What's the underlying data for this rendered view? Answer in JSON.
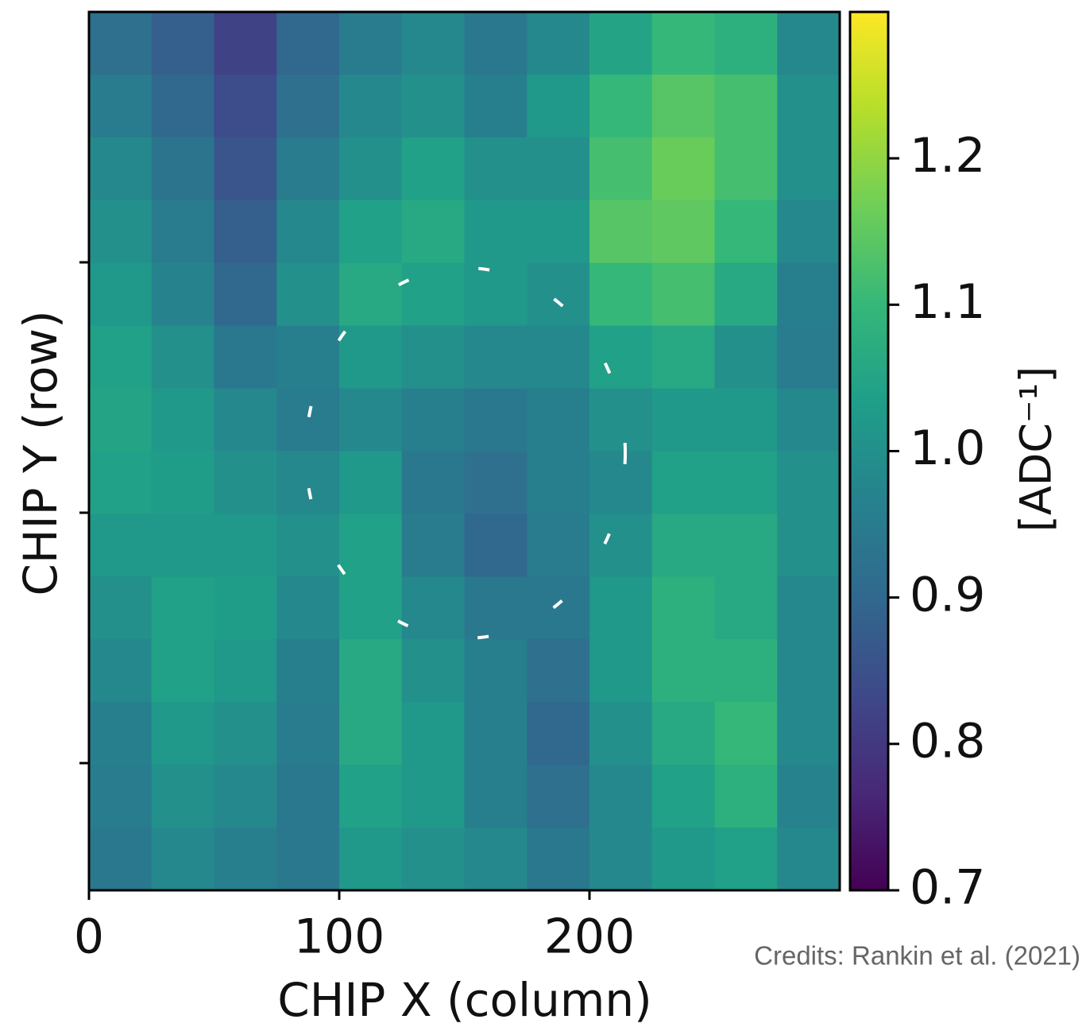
{
  "chart_data": {
    "type": "heatmap",
    "x_label": "CHIP X (column)",
    "y_label": "CHIP Y (row)",
    "colorbar_label": "[ADC⁻¹]",
    "colormap": "viridis",
    "xlim": [
      0,
      300
    ],
    "xticks": [
      0,
      100,
      200
    ],
    "clim": [
      0.7,
      1.3
    ],
    "cticks": [
      0.7,
      0.8,
      0.9,
      {
        "value": 1,
        "label": "1.0"
      },
      1.1,
      1.2
    ],
    "credits": "Credits: Rankin et al. (2021)",
    "z": [
      [
        0.92,
        0.88,
        0.82,
        0.9,
        0.95,
        0.98,
        0.94,
        0.98,
        1.05,
        1.1,
        1.08,
        0.98
      ],
      [
        0.95,
        0.9,
        0.84,
        0.92,
        0.98,
        1.0,
        0.96,
        1.02,
        1.1,
        1.14,
        1.12,
        1.0
      ],
      [
        0.98,
        0.93,
        0.86,
        0.95,
        1.0,
        1.04,
        1.0,
        1.0,
        1.12,
        1.16,
        1.12,
        1.0
      ],
      [
        1.0,
        0.95,
        0.88,
        0.98,
        1.04,
        1.06,
        1.02,
        1.02,
        1.14,
        1.15,
        1.1,
        0.98
      ],
      [
        1.02,
        0.97,
        0.9,
        1.0,
        1.06,
        1.04,
        1.02,
        1.0,
        1.1,
        1.12,
        1.06,
        0.96
      ],
      [
        1.04,
        1.0,
        0.94,
        0.96,
        1.02,
        1.0,
        0.98,
        0.98,
        1.04,
        1.06,
        1.0,
        0.95
      ],
      [
        1.05,
        1.02,
        0.98,
        0.95,
        0.98,
        0.96,
        0.94,
        0.96,
        1.0,
        1.02,
        1.02,
        0.98
      ],
      [
        1.04,
        1.03,
        1.0,
        0.98,
        1.02,
        0.94,
        0.92,
        0.96,
        0.98,
        1.04,
        1.04,
        1.0
      ],
      [
        1.02,
        1.02,
        1.02,
        1.0,
        1.04,
        0.95,
        0.9,
        0.95,
        1.0,
        1.06,
        1.06,
        1.0
      ],
      [
        1.0,
        1.04,
        1.03,
        0.98,
        1.04,
        0.98,
        0.94,
        0.94,
        1.02,
        1.08,
        1.06,
        0.98
      ],
      [
        0.98,
        1.04,
        1.02,
        0.96,
        1.06,
        1.0,
        0.96,
        0.92,
        1.02,
        1.08,
        1.08,
        0.98
      ],
      [
        0.96,
        1.02,
        1.0,
        0.95,
        1.06,
        1.02,
        0.96,
        0.9,
        1.0,
        1.06,
        1.1,
        0.98
      ],
      [
        0.95,
        1.0,
        0.98,
        0.94,
        1.04,
        1.02,
        0.96,
        0.92,
        0.98,
        1.04,
        1.08,
        0.97
      ],
      [
        0.94,
        0.98,
        0.96,
        0.94,
        1.02,
        1.0,
        0.98,
        0.94,
        0.98,
        1.02,
        1.04,
        0.98
      ]
    ]
  }
}
